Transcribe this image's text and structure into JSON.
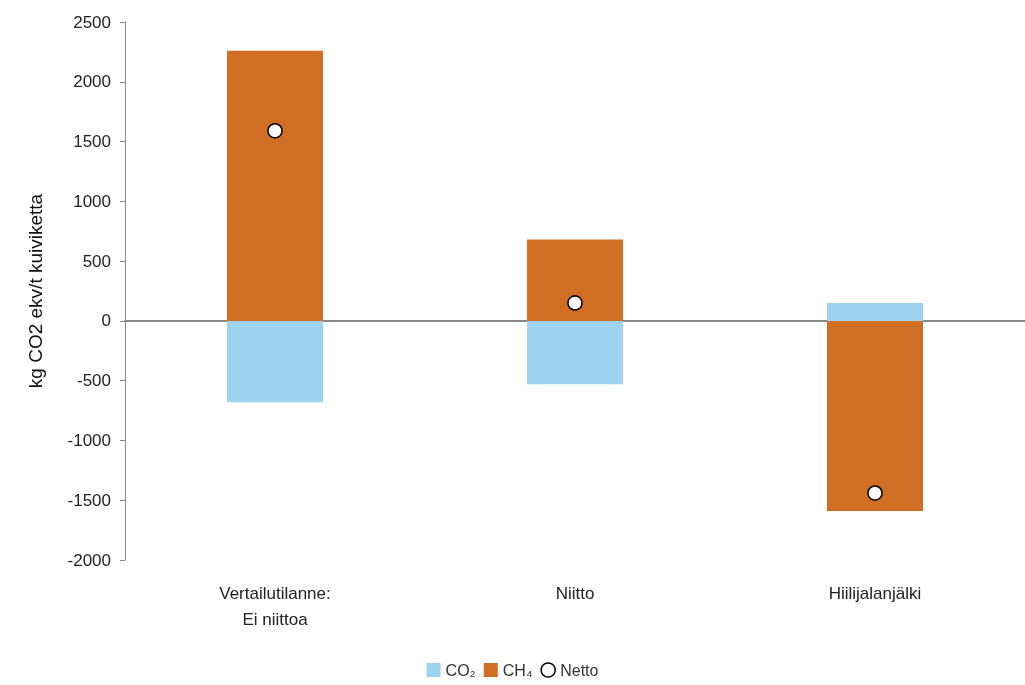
{
  "chart_data": {
    "type": "bar",
    "ylabel": "kg CO2 ekv/t kuiviketta",
    "categories": [
      "Vertailutilanne:\nEi niittoa",
      "Niitto",
      "Hiilijalanjälki"
    ],
    "series": [
      {
        "name": "CO₂",
        "color": "#9dd3ef",
        "values": [
          -680,
          -530,
          150
        ]
      },
      {
        "name": "CH₄",
        "color": "#d06f24",
        "values": [
          2260,
          680,
          -1590
        ]
      },
      {
        "name": "Netto",
        "type": "scatter",
        "color": "#ffffff",
        "x": [
          "Vertailutilanne:\nEi niittoa",
          "Niitto",
          "Hiilijalanjälki"
        ],
        "values": [
          1590,
          150,
          -1440
        ]
      }
    ],
    "stacked": true,
    "ylim": [
      -2000,
      2500
    ],
    "yticks": [
      -2000,
      -1500,
      -1000,
      -500,
      0,
      500,
      1000,
      1500,
      2000,
      2500
    ],
    "legend": "bottom",
    "marker": "circle"
  }
}
